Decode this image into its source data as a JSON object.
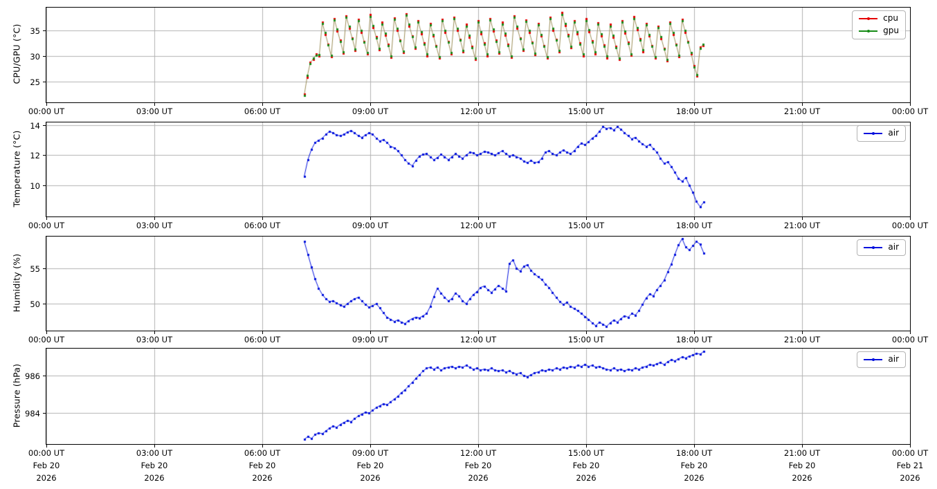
{
  "figure": {
    "background": "#ffffff",
    "grid_color": "#b0b0b0",
    "spine_color": "#000000",
    "x_axis": {
      "range_hours": [
        0,
        24
      ],
      "tick_hours": [
        0,
        3,
        6,
        9,
        12,
        15,
        18,
        21,
        24
      ],
      "tick_labels": [
        "00:00 UT",
        "03:00 UT",
        "06:00 UT",
        "09:00 UT",
        "12:00 UT",
        "15:00 UT",
        "18:00 UT",
        "21:00 UT",
        "00:00 UT"
      ],
      "tick_dates": [
        "Feb 20",
        "Feb 20",
        "Feb 20",
        "Feb 20",
        "Feb 20",
        "Feb 20",
        "Feb 20",
        "Feb 20",
        "Feb 21"
      ],
      "tick_years": [
        "2026",
        "2026",
        "2026",
        "2026",
        "2026",
        "2026",
        "2026",
        "2026",
        "2026"
      ]
    }
  },
  "chart_data": [
    {
      "type": "line",
      "ylabel": "CPU/GPU (°C)",
      "ylim": [
        21.0,
        39.5
      ],
      "yticks": [
        25,
        30,
        35
      ],
      "grid": true,
      "legend_position": "upper right",
      "x_start_hour": 7.167,
      "x_step_minutes": 5,
      "line_color": "#9b8e58",
      "series": [
        {
          "name": "cpu",
          "color": "#e50000",
          "values": [
            22.6,
            25.9,
            28.8,
            29.4,
            30.4,
            30.0,
            36.7,
            34.2,
            32.4,
            29.9,
            37.4,
            34.9,
            33.1,
            30.6,
            37.9,
            35.4,
            33.6,
            31.1,
            37.2,
            34.7,
            32.9,
            30.4,
            38.1,
            35.6,
            33.8,
            31.3,
            36.6,
            34.1,
            32.3,
            29.8,
            37.5,
            35.0,
            33.2,
            30.7,
            38.3,
            35.8,
            34.0,
            31.5,
            36.9,
            34.4,
            32.6,
            30.1,
            36.4,
            33.9,
            32.1,
            29.6,
            37.2,
            34.7,
            32.9,
            30.4,
            37.6,
            35.1,
            33.3,
            30.8,
            36.2,
            33.7,
            31.9,
            29.4,
            36.9,
            34.4,
            32.6,
            30.1,
            37.4,
            34.9,
            33.1,
            30.6,
            36.6,
            34.1,
            32.3,
            29.8,
            37.9,
            35.4,
            33.6,
            31.1,
            37.1,
            34.6,
            32.8,
            30.3,
            36.4,
            33.9,
            32.1,
            29.6,
            37.6,
            35.1,
            33.3,
            30.8,
            38.5,
            36.0,
            34.2,
            31.7,
            36.9,
            34.4,
            32.6,
            30.1,
            37.3,
            34.8,
            33.0,
            30.5,
            36.5,
            34.0,
            32.2,
            29.7,
            36.2,
            33.7,
            31.9,
            29.4,
            37.0,
            34.5,
            32.7,
            30.2,
            37.7,
            35.2,
            33.4,
            30.9,
            36.4,
            33.9,
            32.1,
            29.6,
            35.9,
            33.4,
            31.6,
            29.1,
            36.7,
            34.2,
            32.4,
            29.9,
            37.2,
            34.7,
            32.9,
            30.4,
            28.2,
            26.1,
            31.8,
            32.1
          ]
        },
        {
          "name": "gpu",
          "color": "#168a16",
          "values": [
            22.3,
            26.3,
            28.6,
            29.7,
            30.2,
            30.3,
            36.4,
            34.6,
            32.2,
            30.2,
            37.1,
            35.3,
            32.9,
            30.9,
            37.6,
            35.8,
            33.4,
            31.4,
            36.9,
            35.1,
            32.7,
            30.7,
            37.8,
            36.0,
            33.6,
            31.6,
            36.3,
            34.5,
            32.1,
            30.1,
            37.2,
            35.4,
            33.0,
            31.0,
            38.0,
            36.2,
            33.8,
            31.8,
            36.6,
            34.8,
            32.4,
            30.4,
            36.1,
            34.3,
            31.9,
            29.9,
            36.9,
            35.1,
            32.7,
            30.7,
            37.3,
            35.5,
            33.1,
            31.1,
            35.9,
            34.1,
            31.7,
            29.7,
            36.6,
            34.8,
            32.4,
            30.4,
            37.1,
            35.3,
            32.9,
            30.9,
            36.3,
            34.5,
            32.1,
            30.1,
            37.6,
            35.8,
            33.4,
            31.4,
            36.8,
            35.0,
            32.6,
            30.6,
            36.1,
            34.3,
            31.9,
            29.9,
            37.3,
            35.5,
            33.1,
            31.1,
            38.2,
            36.4,
            34.0,
            32.0,
            36.6,
            34.8,
            32.4,
            30.4,
            37.0,
            35.2,
            32.8,
            30.8,
            36.2,
            34.4,
            32.0,
            30.0,
            35.9,
            34.1,
            31.7,
            29.7,
            36.7,
            34.9,
            32.5,
            30.5,
            37.4,
            35.6,
            33.2,
            31.2,
            36.1,
            34.3,
            31.9,
            29.9,
            35.6,
            33.8,
            31.4,
            29.4,
            36.4,
            34.6,
            32.2,
            30.2,
            36.9,
            35.1,
            32.7,
            30.7,
            27.9,
            26.4,
            31.6,
            32.4
          ]
        }
      ]
    },
    {
      "type": "line",
      "ylabel": "Temperature (°C)",
      "ylim": [
        7.9,
        14.2
      ],
      "yticks": [
        10,
        12,
        14
      ],
      "grid": true,
      "legend_position": "upper right",
      "x_start_hour": 7.167,
      "x_step_minutes": 6,
      "series": [
        {
          "name": "air",
          "color": "#0010dd",
          "values": [
            10.6,
            11.7,
            12.4,
            12.85,
            13.0,
            13.15,
            13.4,
            13.6,
            13.5,
            13.35,
            13.3,
            13.4,
            13.55,
            13.65,
            13.5,
            13.3,
            13.2,
            13.35,
            13.5,
            13.4,
            13.15,
            12.95,
            13.05,
            12.85,
            12.6,
            12.5,
            12.3,
            12.0,
            11.7,
            11.45,
            11.3,
            11.65,
            11.95,
            12.05,
            12.1,
            11.9,
            11.7,
            11.85,
            12.05,
            11.9,
            11.7,
            11.9,
            12.1,
            11.95,
            11.8,
            12.0,
            12.2,
            12.15,
            12.0,
            12.1,
            12.25,
            12.2,
            12.1,
            12.0,
            12.15,
            12.3,
            12.1,
            11.95,
            12.0,
            11.9,
            11.8,
            11.6,
            11.5,
            11.65,
            11.5,
            11.55,
            11.8,
            12.2,
            12.3,
            12.1,
            12.0,
            12.2,
            12.35,
            12.2,
            12.1,
            12.3,
            12.6,
            12.8,
            12.7,
            12.9,
            13.15,
            13.3,
            13.6,
            13.9,
            13.8,
            13.85,
            13.7,
            13.9,
            13.75,
            13.5,
            13.3,
            13.1,
            13.2,
            12.95,
            12.75,
            12.6,
            12.7,
            12.45,
            12.2,
            11.8,
            11.45,
            11.55,
            11.25,
            10.85,
            10.45,
            10.25,
            10.5,
            10.0,
            9.5,
            8.9,
            8.55,
            8.85
          ]
        }
      ]
    },
    {
      "type": "line",
      "ylabel": "Humidity (%)",
      "ylim": [
        46.2,
        59.5
      ],
      "yticks": [
        50,
        55
      ],
      "grid": true,
      "legend_position": "upper right",
      "x_start_hour": 7.167,
      "x_step_minutes": 6,
      "series": [
        {
          "name": "air",
          "color": "#0010dd",
          "values": [
            58.8,
            57.0,
            55.2,
            53.5,
            52.2,
            51.3,
            50.7,
            50.3,
            50.4,
            50.1,
            49.8,
            49.6,
            50.0,
            50.4,
            50.7,
            50.9,
            50.4,
            49.9,
            49.5,
            49.7,
            50.0,
            49.4,
            48.7,
            48.1,
            47.8,
            47.5,
            47.7,
            47.4,
            47.2,
            47.6,
            47.9,
            48.1,
            48.0,
            48.3,
            48.6,
            49.6,
            51.0,
            52.2,
            51.5,
            50.9,
            50.4,
            50.7,
            51.5,
            51.1,
            50.4,
            50.0,
            50.7,
            51.3,
            51.7,
            52.3,
            52.5,
            52.0,
            51.6,
            52.1,
            52.6,
            52.2,
            51.8,
            55.7,
            56.2,
            55.0,
            54.6,
            55.3,
            55.5,
            54.7,
            54.2,
            53.8,
            53.4,
            52.8,
            52.3,
            51.6,
            50.9,
            50.3,
            49.9,
            50.2,
            49.6,
            49.3,
            49.0,
            48.6,
            48.2,
            47.8,
            47.3,
            46.9,
            47.4,
            47.1,
            46.8,
            47.3,
            47.7,
            47.4,
            47.9,
            48.3,
            48.1,
            48.6,
            48.4,
            49.0,
            49.9,
            50.8,
            51.4,
            51.1,
            52.0,
            52.6,
            53.3,
            54.5,
            55.6,
            57.0,
            58.3,
            59.2,
            58.0,
            57.6,
            58.2,
            58.8,
            58.4,
            57.2
          ]
        }
      ]
    },
    {
      "type": "line",
      "ylabel": "Pressure (hPa)",
      "ylim": [
        982.35,
        987.45
      ],
      "yticks": [
        984,
        986
      ],
      "grid": true,
      "legend_position": "upper right",
      "x_start_hour": 7.167,
      "x_step_minutes": 6,
      "series": [
        {
          "name": "air",
          "color": "#0010dd",
          "values": [
            982.6,
            982.75,
            982.65,
            982.85,
            982.95,
            982.9,
            983.05,
            983.2,
            983.3,
            983.25,
            983.4,
            983.5,
            983.6,
            983.55,
            983.7,
            983.85,
            983.95,
            984.05,
            984.0,
            984.15,
            984.3,
            984.4,
            984.5,
            984.45,
            984.6,
            984.75,
            984.9,
            985.1,
            985.25,
            985.45,
            985.65,
            985.85,
            986.05,
            986.25,
            986.4,
            986.45,
            986.35,
            986.45,
            986.3,
            986.4,
            986.45,
            986.5,
            986.4,
            986.5,
            986.45,
            986.55,
            986.45,
            986.35,
            986.4,
            986.3,
            986.35,
            986.3,
            986.4,
            986.3,
            986.25,
            986.3,
            986.2,
            986.25,
            986.15,
            986.1,
            986.15,
            986.0,
            985.95,
            986.05,
            986.15,
            986.2,
            986.3,
            986.25,
            986.35,
            986.3,
            986.4,
            986.35,
            986.45,
            986.4,
            986.5,
            986.45,
            986.55,
            986.5,
            986.6,
            986.5,
            986.55,
            986.45,
            986.5,
            986.4,
            986.35,
            986.3,
            986.4,
            986.3,
            986.35,
            986.25,
            986.35,
            986.3,
            986.4,
            986.35,
            986.45,
            986.5,
            986.6,
            986.55,
            986.65,
            986.7,
            986.6,
            986.75,
            986.85,
            986.8,
            986.9,
            987.0,
            986.95,
            987.05,
            987.1,
            987.2,
            987.15,
            987.3
          ]
        }
      ]
    }
  ]
}
